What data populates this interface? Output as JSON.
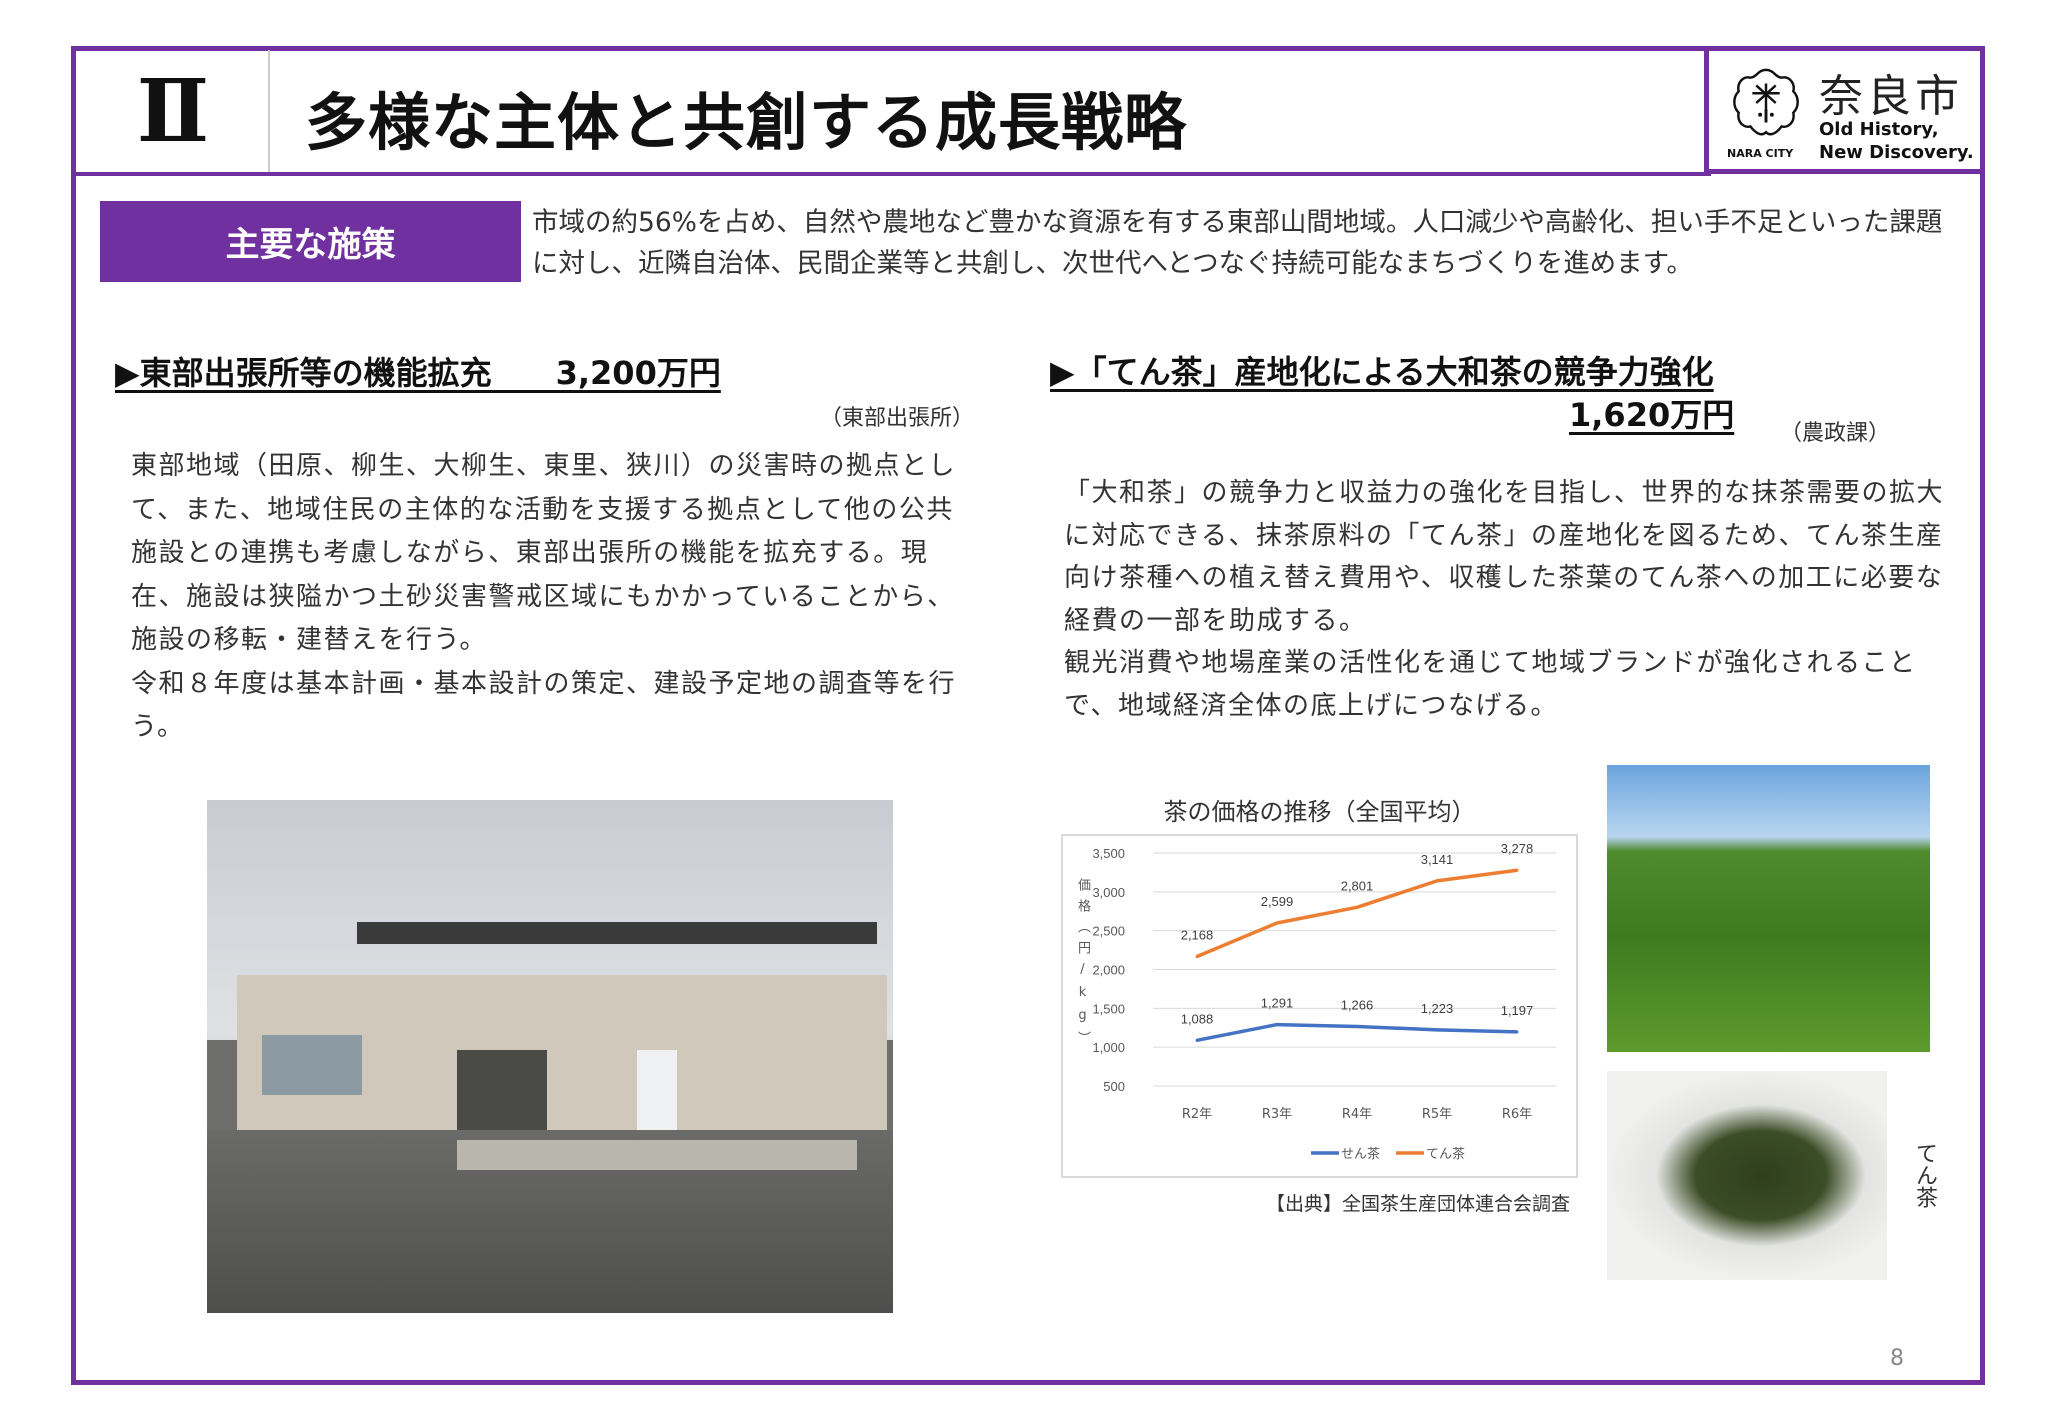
{
  "header": {
    "section_numeral": "Ⅱ",
    "title": "多様な主体と共創する成長戦略",
    "logo": {
      "city_jp": "奈良市",
      "city_en": "NARA CITY",
      "tagline_1": "Old History,",
      "tagline_2": "New Discovery."
    }
  },
  "intro": {
    "badge": "主要な施策",
    "text": "市域の約56%を占め、自然や農地など豊かな資源を有する東部山間地域。人口減少や高齢化、担い手不足といった課題に対し、近隣自治体、民間企業等と共創し、次世代へとつなぐ持続可能なまちづくりを進めます。"
  },
  "left": {
    "heading": "▶東部出張所等の機能拡充　　3,200万円",
    "dept": "（東部出張所）",
    "body_1": "東部地域（田原、柳生、大柳生、東里、狭川）の災害時の拠点として、また、地域住民の主体的な活動を支援する拠点として他の公共施設との連携も考慮しながら、東部出張所の機能を拡充する。現在、施設は狭隘かつ土砂災害警戒区域にもかかっていることから、施設の移転・建替えを行う。",
    "body_2": "令和８年度は基本計画・基本設計の策定、建設予定地の調査等を行う。"
  },
  "right": {
    "heading": "▶「てん茶」産地化による大和茶の競争力強化",
    "amount": "1,620万円",
    "dept": "（農政課）",
    "body_1": "「大和茶」の競争力と収益力の強化を目指し、世界的な抹茶需要の拡大に対応できる、抹茶原料の「てん茶」の産地化を図るため、てん茶生産向け茶種への植え替え費用や、収穫した茶葉のてん茶への加工に必要な経費の一部を助成する。",
    "body_2": "観光消費や地場産業の活性化を通じて地域ブランドが強化されることで、地域経済全体の底上げにつなげる。",
    "photo_label": "てん茶",
    "source": "【出典】全国茶生産団体連合会調査"
  },
  "chart_data": {
    "type": "line",
    "title": "茶の価格の推移（全国平均）",
    "ylabel": "価格（円/kg）",
    "xlabel": "",
    "categories": [
      "R2年",
      "R3年",
      "R4年",
      "R5年",
      "R6年"
    ],
    "ylim": [
      500,
      3500
    ],
    "yticks": [
      "500",
      "1,000",
      "1,500",
      "2,000",
      "2,500",
      "3,000",
      "3,500"
    ],
    "grid": true,
    "legend": "bottom",
    "series": [
      {
        "name": "せん茶",
        "color": "#4472c4",
        "values": [
          1088,
          1291,
          1266,
          1223,
          1197
        ],
        "labels": [
          "1,088",
          "1,291",
          "1,266",
          "1,223",
          "1,197"
        ]
      },
      {
        "name": "てん茶",
        "color": "#ed7d31",
        "values": [
          2168,
          2599,
          2801,
          3141,
          3278
        ],
        "labels": [
          "2,168",
          "2,599",
          "2,801",
          "3,141",
          "3,278"
        ]
      }
    ]
  },
  "page_number": "8",
  "colors": {
    "accent": "#7030a0"
  }
}
